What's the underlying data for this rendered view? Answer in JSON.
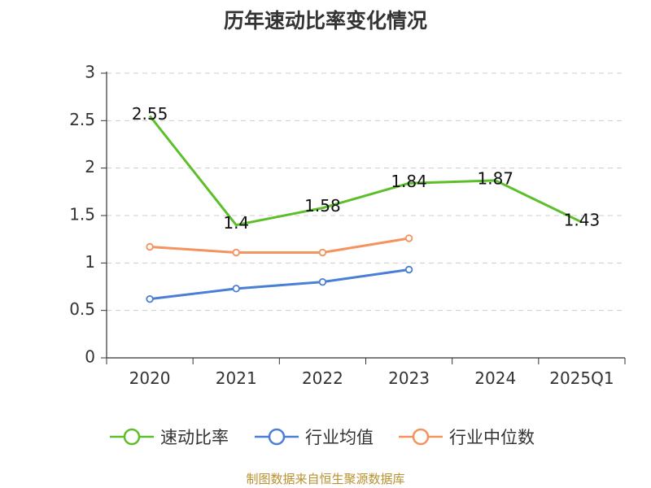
{
  "colors": {
    "accent_speed": "#5cbf2a",
    "accent_avg": "#4a7fd6",
    "accent_median": "#f5925e"
  },
  "chart_data": {
    "type": "line",
    "title": "历年速动比率变化情况",
    "categories": [
      "2020",
      "2021",
      "2022",
      "2023",
      "2024",
      "2025Q1"
    ],
    "ylim": [
      0,
      3
    ],
    "yticks": [
      "0",
      "0.5",
      "1",
      "1.5",
      "2",
      "2.5",
      "3"
    ],
    "grid": true,
    "legend_position": "bottom",
    "series": [
      {
        "name": "速动比率",
        "color": "#5cbf2a",
        "values": [
          2.55,
          1.4,
          1.58,
          1.84,
          1.87,
          1.43
        ],
        "labels": [
          "2.55",
          "1.4",
          "1.58",
          "1.84",
          "1.87",
          "1.43"
        ],
        "show_labels": true
      },
      {
        "name": "行业均值",
        "color": "#4a7fd6",
        "values": [
          0.62,
          0.73,
          0.8,
          0.93,
          null,
          null
        ],
        "show_labels": false
      },
      {
        "name": "行业中位数",
        "color": "#f5925e",
        "values": [
          1.17,
          1.11,
          1.11,
          1.26,
          null,
          null
        ],
        "show_labels": false
      }
    ],
    "source": "制图数据来自恒生聚源数据库"
  }
}
